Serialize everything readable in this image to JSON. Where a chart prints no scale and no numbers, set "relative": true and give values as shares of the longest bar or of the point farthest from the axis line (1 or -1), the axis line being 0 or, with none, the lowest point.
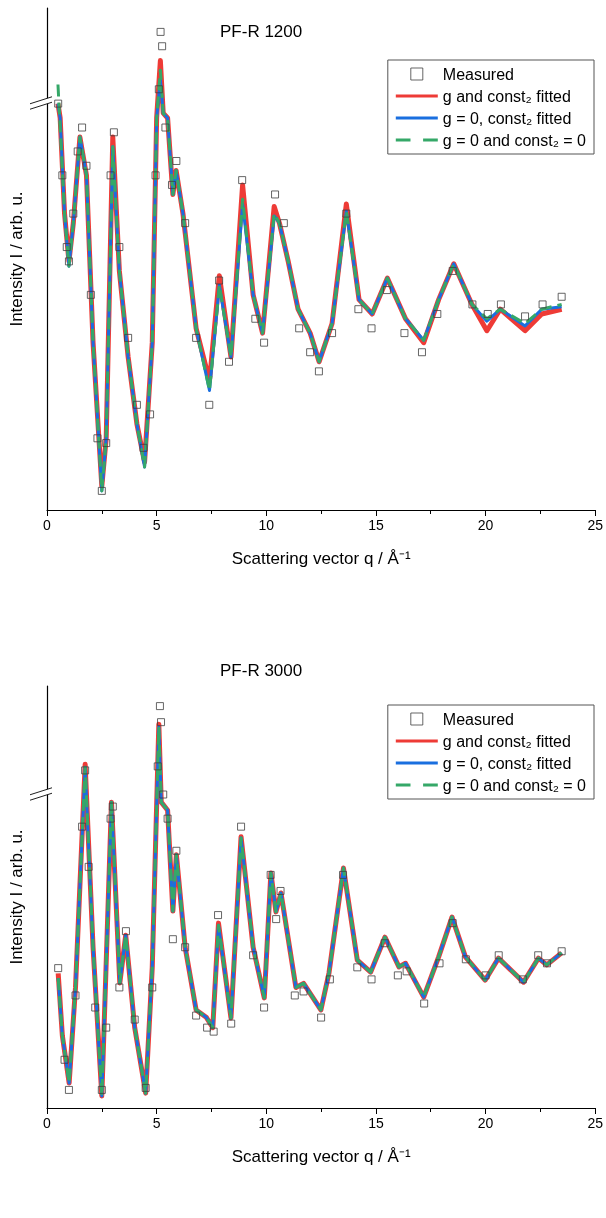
{
  "chart_data": [
    {
      "type": "line",
      "title": "PF-R 1200",
      "xlabel": "Scattering vector q / Å⁻¹",
      "ylabel": "Intensity I / arb. u.",
      "relative": true,
      "xlim": [
        0,
        25
      ],
      "xticks": [
        0,
        5,
        10,
        15,
        20,
        25
      ],
      "tick_labels": "x",
      "grid": false,
      "legend": "top right",
      "x": [
        0.5,
        0.6,
        0.8,
        1.0,
        1.2,
        1.5,
        1.8,
        2.1,
        2.5,
        2.7,
        3.0,
        3.3,
        3.7,
        4.1,
        4.45,
        4.8,
        5.0,
        5.17,
        5.3,
        5.5,
        5.74,
        5.89,
        6.2,
        6.8,
        7.41,
        7.86,
        8.39,
        8.92,
        9.4,
        9.83,
        10.36,
        10.6,
        11.0,
        11.45,
        12.0,
        12.41,
        13.0,
        13.65,
        14.23,
        14.83,
        15.52,
        16.35,
        17.18,
        17.86,
        18.55,
        19.38,
        20.06,
        20.67,
        21.8,
        22.56,
        23.47
      ],
      "series": [
        {
          "name": "Measured",
          "type": "scatter",
          "marker": "square",
          "color": "#404040",
          "x": [
            0.51,
            0.7,
            0.9,
            1.0,
            1.2,
            1.4,
            1.6,
            1.8,
            2.0,
            2.3,
            2.5,
            2.7,
            2.9,
            3.05,
            3.3,
            3.7,
            4.1,
            4.4,
            4.7,
            4.95,
            5.1,
            5.18,
            5.25,
            5.4,
            5.7,
            5.9,
            6.3,
            6.8,
            7.4,
            7.85,
            8.3,
            8.9,
            9.5,
            9.9,
            10.4,
            10.8,
            11.5,
            12.0,
            12.4,
            13.0,
            13.65,
            14.2,
            14.8,
            15.5,
            16.3,
            17.1,
            17.8,
            18.5,
            19.4,
            20.1,
            20.7,
            21.8,
            22.6,
            23.47
          ],
          "values": [
            0.85,
            0.7,
            0.55,
            0.52,
            0.62,
            0.75,
            0.8,
            0.72,
            0.45,
            0.15,
            0.04,
            0.14,
            0.7,
            0.79,
            0.55,
            0.36,
            0.22,
            0.13,
            0.2,
            0.7,
            0.88,
            1.0,
            0.97,
            0.8,
            0.68,
            0.73,
            0.6,
            0.36,
            0.22,
            0.48,
            0.31,
            0.69,
            0.4,
            0.35,
            0.66,
            0.6,
            0.38,
            0.33,
            0.29,
            0.37,
            0.62,
            0.42,
            0.38,
            0.46,
            0.37,
            0.33,
            0.41,
            0.5,
            0.43,
            0.41,
            0.43,
            0.405,
            0.43,
            0.446
          ]
        },
        {
          "name": "g and const₂ fitted",
          "color": "#ee3b36",
          "values": [
            0.85,
            0.82,
            0.62,
            0.52,
            0.6,
            0.78,
            0.7,
            0.35,
            0.05,
            0.15,
            0.78,
            0.5,
            0.32,
            0.18,
            0.1,
            0.35,
            0.82,
            0.94,
            0.83,
            0.82,
            0.66,
            0.71,
            0.62,
            0.38,
            0.27,
            0.49,
            0.32,
            0.68,
            0.45,
            0.37,
            0.635,
            0.6,
            0.52,
            0.42,
            0.37,
            0.31,
            0.39,
            0.64,
            0.44,
            0.41,
            0.485,
            0.4,
            0.35,
            0.44,
            0.515,
            0.43,
            0.375,
            0.42,
            0.375,
            0.41,
            0.42
          ]
        },
        {
          "name": "g = 0, const₂ fitted",
          "color": "#1a6fdf",
          "values": [
            0.85,
            0.82,
            0.62,
            0.51,
            0.6,
            0.78,
            0.7,
            0.35,
            0.04,
            0.15,
            0.76,
            0.5,
            0.32,
            0.18,
            0.09,
            0.35,
            0.82,
            0.9,
            0.83,
            0.82,
            0.66,
            0.71,
            0.62,
            0.38,
            0.25,
            0.47,
            0.32,
            0.64,
            0.45,
            0.37,
            0.615,
            0.6,
            0.52,
            0.42,
            0.37,
            0.31,
            0.39,
            0.625,
            0.44,
            0.41,
            0.485,
            0.4,
            0.355,
            0.44,
            0.515,
            0.43,
            0.395,
            0.42,
            0.385,
            0.42,
            0.425
          ]
        },
        {
          "name": "g = 0 and const₂ = 0",
          "color": "#35a868",
          "line_style": "dashed",
          "values": [
            0.89,
            0.8,
            0.62,
            0.51,
            0.6,
            0.78,
            0.7,
            0.35,
            0.04,
            0.15,
            0.76,
            0.5,
            0.32,
            0.18,
            0.09,
            0.35,
            0.82,
            0.92,
            0.83,
            0.82,
            0.66,
            0.71,
            0.62,
            0.38,
            0.25,
            0.47,
            0.32,
            0.65,
            0.45,
            0.37,
            0.62,
            0.6,
            0.52,
            0.42,
            0.37,
            0.31,
            0.39,
            0.625,
            0.44,
            0.41,
            0.485,
            0.4,
            0.355,
            0.44,
            0.515,
            0.43,
            0.4,
            0.42,
            0.39,
            0.42,
            0.43
          ]
        }
      ]
    },
    {
      "type": "line",
      "title": "PF-R 3000",
      "xlabel": "Scattering vector q / Å⁻¹",
      "ylabel": "Intensity I / arb. u.",
      "relative": true,
      "xlim": [
        0,
        25
      ],
      "xticks": [
        0,
        5,
        10,
        15,
        20,
        25
      ],
      "tick_labels": "x",
      "grid": false,
      "legend": "top right",
      "x": [
        0.51,
        0.7,
        1.01,
        1.3,
        1.74,
        2.1,
        2.5,
        2.94,
        3.32,
        3.59,
        4.0,
        4.5,
        4.8,
        5.1,
        5.21,
        5.5,
        5.74,
        5.9,
        6.3,
        6.8,
        7.26,
        7.56,
        7.82,
        8.39,
        8.85,
        9.4,
        9.91,
        10.21,
        10.44,
        10.67,
        11.35,
        11.7,
        12.49,
        12.86,
        13.52,
        14.15,
        14.76,
        15.41,
        16.05,
        16.35,
        17.18,
        17.86,
        18.47,
        19.08,
        19.98,
        20.59,
        21.73,
        22.41,
        22.79,
        23.47
      ],
      "series": [
        {
          "name": "Measured",
          "type": "scatter",
          "marker": "square",
          "color": "#404040",
          "x": [
            0.51,
            0.8,
            1.0,
            1.3,
            1.6,
            1.74,
            1.9,
            2.2,
            2.5,
            2.7,
            2.9,
            3.0,
            3.3,
            3.6,
            4.0,
            4.5,
            4.8,
            5.05,
            5.15,
            5.2,
            5.3,
            5.5,
            5.74,
            5.9,
            6.3,
            6.8,
            7.3,
            7.6,
            7.8,
            8.4,
            8.85,
            9.4,
            9.9,
            10.2,
            10.45,
            10.65,
            11.3,
            11.7,
            12.5,
            12.9,
            13.5,
            14.15,
            14.8,
            15.4,
            16.0,
            16.4,
            17.2,
            17.9,
            18.5,
            19.1,
            20.0,
            20.6,
            21.7,
            22.4,
            22.8,
            23.47
          ],
          "values": [
            0.348,
            0.12,
            0.045,
            0.28,
            0.7,
            0.84,
            0.6,
            0.25,
            0.045,
            0.2,
            0.72,
            0.75,
            0.3,
            0.44,
            0.22,
            0.05,
            0.3,
            0.85,
            1.0,
            0.96,
            0.78,
            0.72,
            0.42,
            0.64,
            0.4,
            0.23,
            0.2,
            0.19,
            0.48,
            0.21,
            0.7,
            0.38,
            0.25,
            0.58,
            0.47,
            0.54,
            0.28,
            0.29,
            0.225,
            0.32,
            0.58,
            0.35,
            0.32,
            0.41,
            0.33,
            0.34,
            0.26,
            0.36,
            0.46,
            0.37,
            0.33,
            0.38,
            0.32,
            0.38,
            0.36,
            0.39
          ]
        },
        {
          "name": "g and const₂ fitted",
          "color": "#ee3b36",
          "values": [
            0.335,
            0.18,
            0.062,
            0.3,
            0.855,
            0.4,
            0.03,
            0.761,
            0.311,
            0.43,
            0.2,
            0.037,
            0.35,
            0.955,
            0.761,
            0.741,
            0.49,
            0.63,
            0.4,
            0.244,
            0.226,
            0.2,
            0.46,
            0.224,
            0.675,
            0.4,
            0.274,
            0.585,
            0.488,
            0.535,
            0.3,
            0.31,
            0.244,
            0.336,
            0.597,
            0.368,
            0.338,
            0.425,
            0.351,
            0.36,
            0.276,
            0.376,
            0.475,
            0.376,
            0.318,
            0.373,
            0.313,
            0.373,
            0.356,
            0.386
          ]
        },
        {
          "name": "g = 0, const₂ fitted",
          "color": "#1a6fdf",
          "values": [
            0.323,
            0.18,
            0.062,
            0.3,
            0.848,
            0.4,
            0.03,
            0.761,
            0.311,
            0.43,
            0.2,
            0.037,
            0.35,
            0.948,
            0.761,
            0.741,
            0.49,
            0.63,
            0.4,
            0.244,
            0.226,
            0.2,
            0.455,
            0.224,
            0.672,
            0.4,
            0.274,
            0.585,
            0.488,
            0.535,
            0.3,
            0.31,
            0.244,
            0.336,
            0.597,
            0.368,
            0.338,
            0.425,
            0.351,
            0.36,
            0.276,
            0.376,
            0.475,
            0.376,
            0.318,
            0.373,
            0.313,
            0.373,
            0.356,
            0.386
          ]
        },
        {
          "name": "g = 0 and const₂ = 0",
          "color": "#35a868",
          "line_style": "dashed",
          "values": [
            0.323,
            0.18,
            0.062,
            0.3,
            0.848,
            0.4,
            0.03,
            0.761,
            0.311,
            0.43,
            0.2,
            0.037,
            0.35,
            0.948,
            0.761,
            0.741,
            0.49,
            0.63,
            0.4,
            0.244,
            0.226,
            0.2,
            0.455,
            0.224,
            0.672,
            0.4,
            0.274,
            0.585,
            0.488,
            0.535,
            0.3,
            0.31,
            0.244,
            0.336,
            0.597,
            0.368,
            0.338,
            0.425,
            0.351,
            0.36,
            0.276,
            0.376,
            0.475,
            0.376,
            0.318,
            0.373,
            0.313,
            0.373,
            0.356,
            0.386
          ]
        }
      ]
    }
  ]
}
